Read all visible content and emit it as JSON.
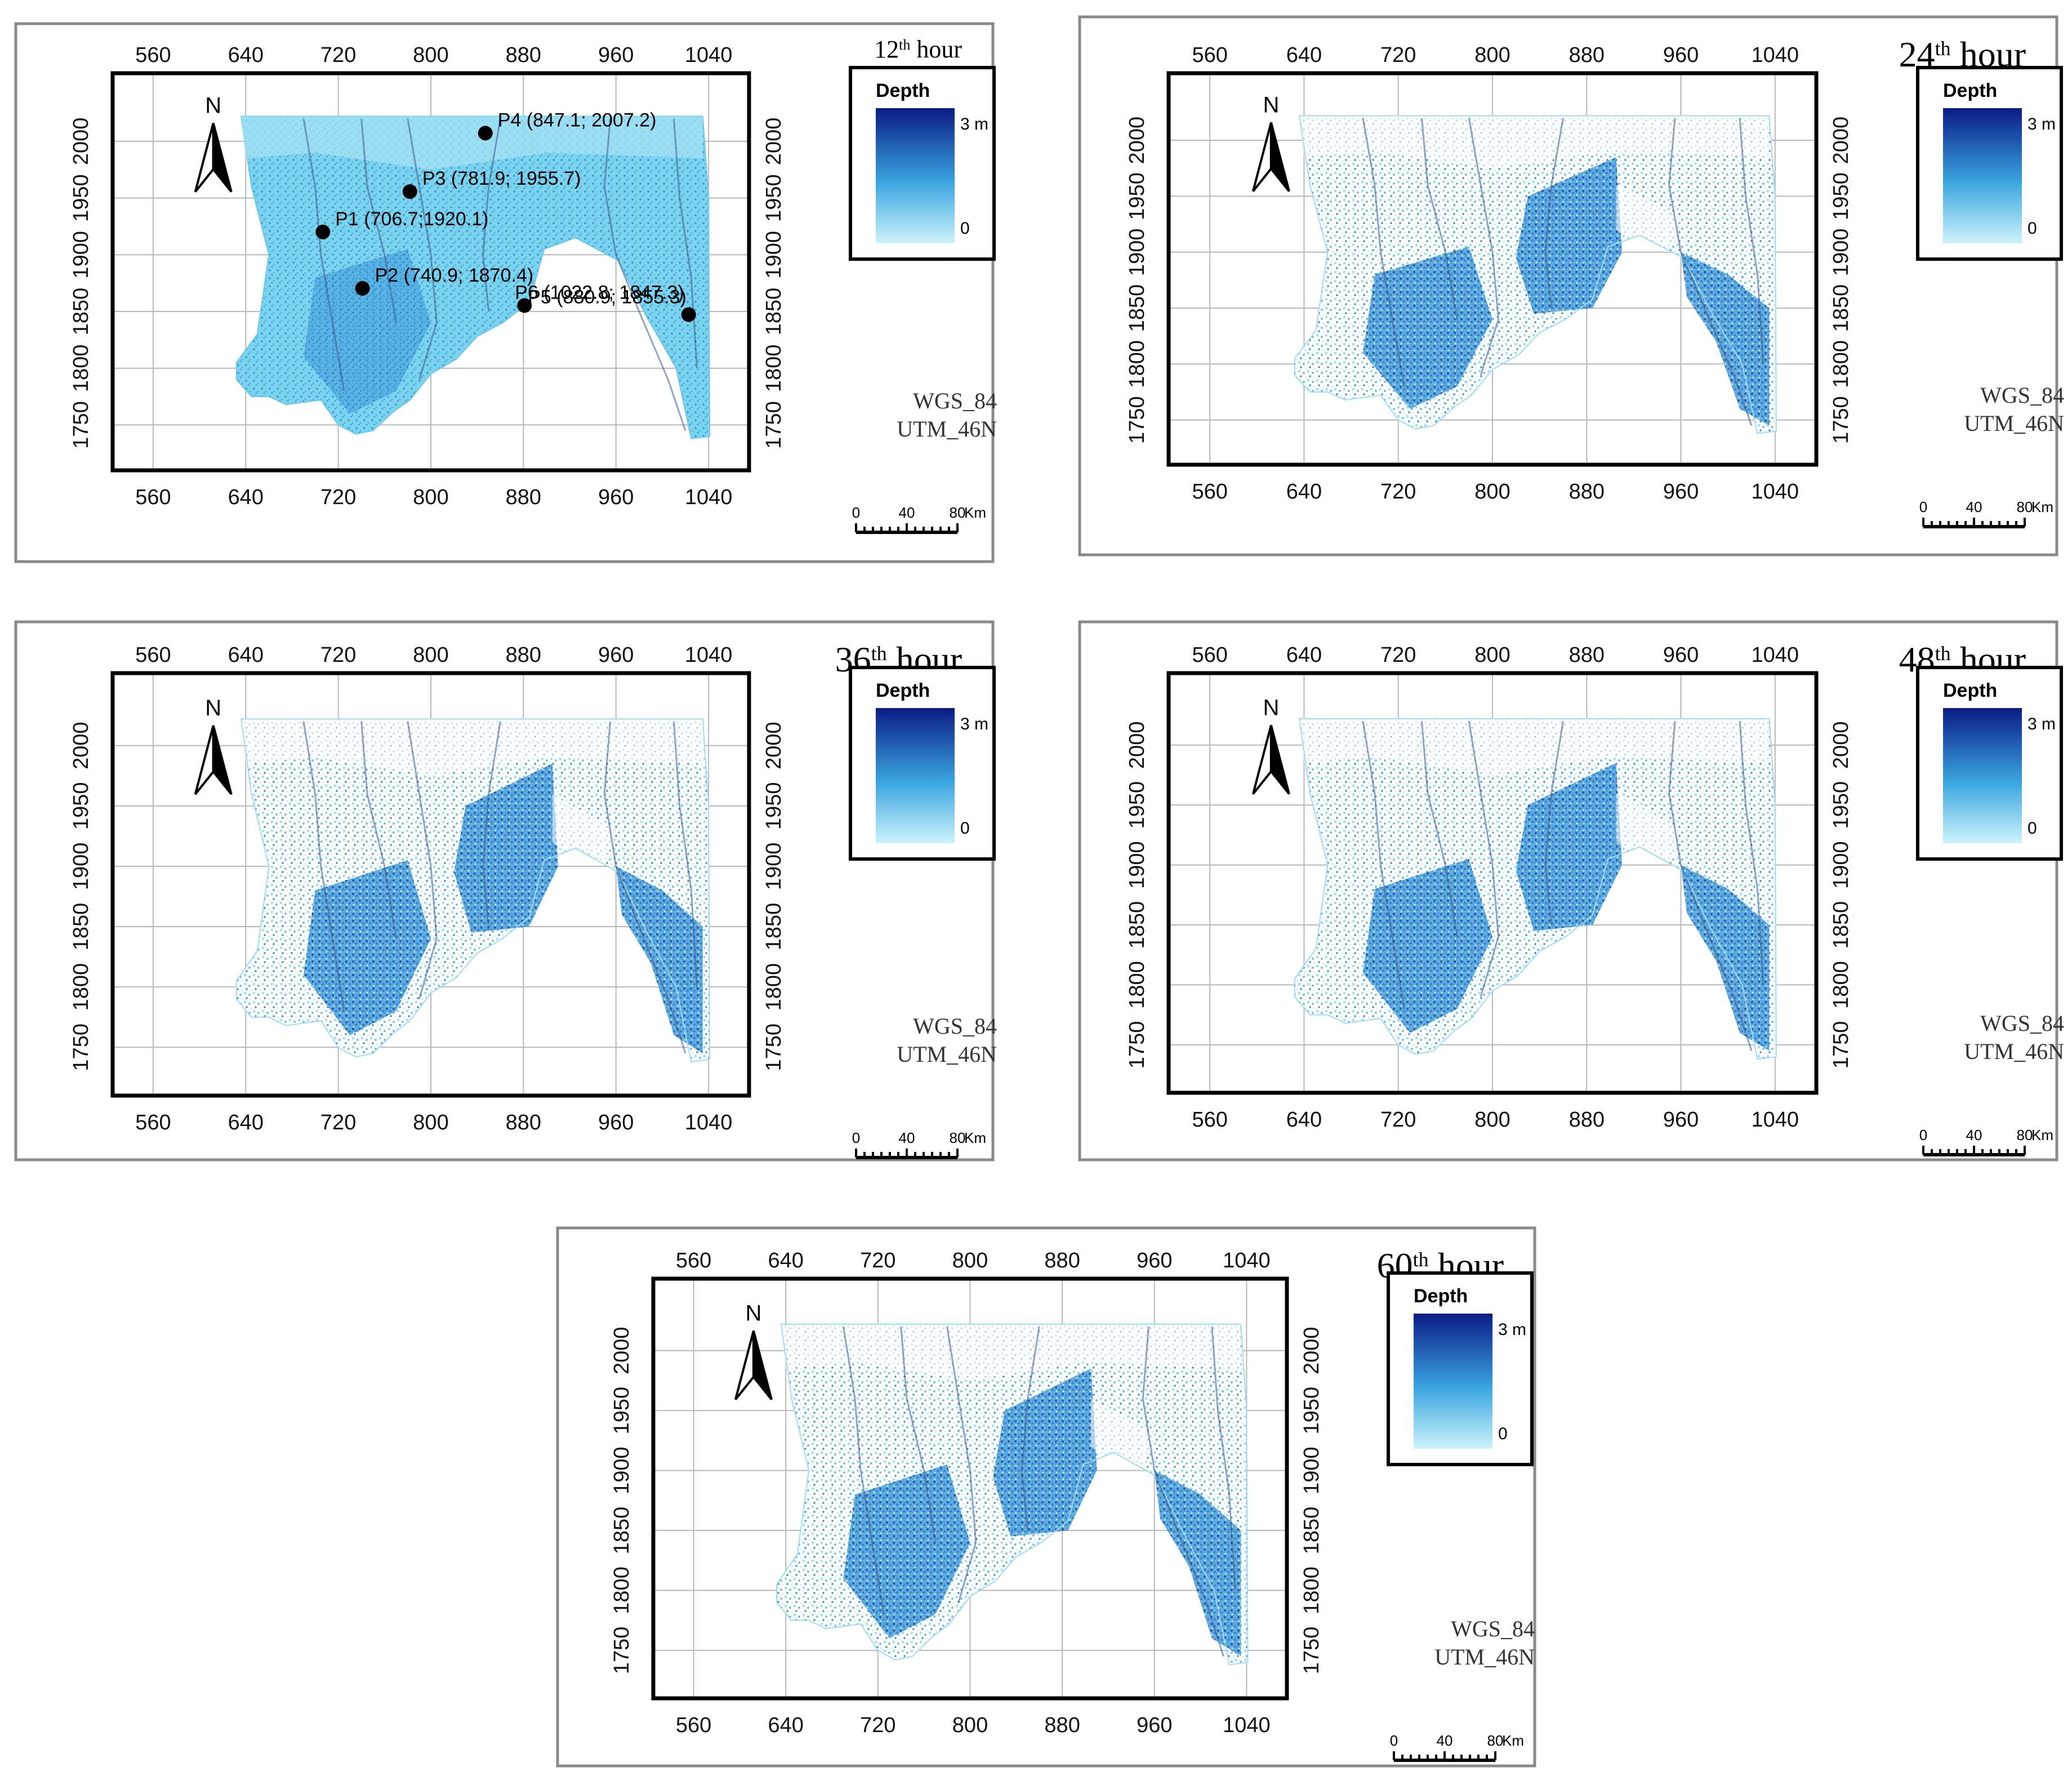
{
  "figure": {
    "colors": {
      "shallow": "#c8f2fb",
      "mid": "#2fa0dc",
      "deep": "#0b1f8c",
      "frame": "#000000",
      "panel_border": "#8a8a8a"
    },
    "axes": {
      "x_ticks": [
        "560",
        "640",
        "720",
        "800",
        "880",
        "960",
        "1040"
      ],
      "y_ticks": [
        "1750",
        "1800",
        "1850",
        "1900",
        "1950",
        "2000"
      ]
    },
    "legend": {
      "title": "Depth",
      "max_label": "3 m",
      "min_label": "0"
    },
    "projection": {
      "line1": "WGS_84",
      "line2": "UTM_46N"
    },
    "scale_bar": {
      "labels": [
        "0",
        "40",
        "80"
      ],
      "unit": "Km"
    },
    "north_arrow": {
      "label": "N"
    },
    "points": [
      {
        "label": "P1 (706.7;1920.1)",
        "x": 706.7,
        "y": 1920.1
      },
      {
        "label": "P2 (740.9; 1870.4)",
        "x": 740.9,
        "y": 1870.4
      },
      {
        "label": "P3 (781.9; 1955.7)",
        "x": 781.9,
        "y": 1955.7
      },
      {
        "label": "P4 (847.1; 2007.2)",
        "x": 847.1,
        "y": 2007.2
      },
      {
        "label": "P5 (880.9; 1855.3)",
        "x": 880.9,
        "y": 1855.3
      },
      {
        "label": "P6 (1022.8; 1847.3)",
        "x": 1022.8,
        "y": 1847.3
      }
    ],
    "panels": [
      {
        "id": "h12",
        "hour_num": "12",
        "hour_sup": "th",
        "hour_word": " hour",
        "style": "full"
      },
      {
        "id": "h24",
        "hour_num": "24",
        "hour_sup": "th",
        "hour_word": " hour",
        "style": "patchy"
      },
      {
        "id": "h36",
        "hour_num": "36",
        "hour_sup": "th",
        "hour_word": " hour",
        "style": "patchy"
      },
      {
        "id": "h48",
        "hour_num": "48",
        "hour_sup": "th",
        "hour_word": " hour",
        "style": "patchy"
      },
      {
        "id": "h60",
        "hour_num": "60",
        "hour_sup": "th",
        "hour_word": " hour",
        "style": "patchy"
      }
    ]
  }
}
